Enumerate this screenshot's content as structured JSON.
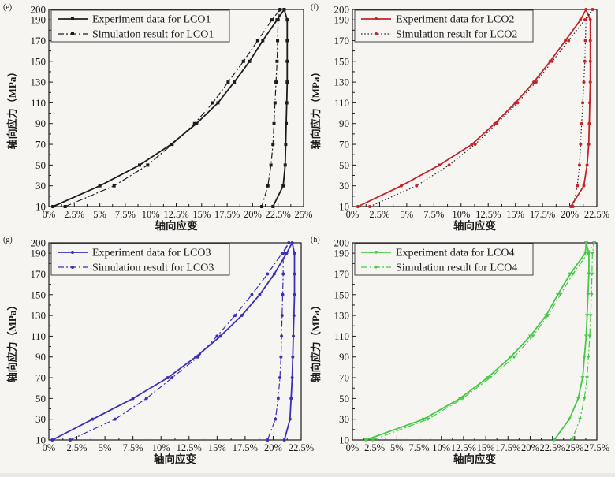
{
  "figure": {
    "background": "#f6f5f2",
    "text_color": "#1a1a1a",
    "xlabel": "轴向应变",
    "ylabel": "轴向应力（MPa）"
  },
  "chart_data": [
    {
      "type": "line",
      "panel_label": "(e)",
      "xlabel": "轴向应变",
      "ylabel": "轴向应力（MPa）",
      "xlim": [
        0,
        25
      ],
      "ylim": [
        10,
        200
      ],
      "xticks": [
        0,
        2.5,
        5,
        7.5,
        10,
        12.5,
        15,
        17.5,
        20,
        22.5,
        25
      ],
      "xtick_labels": [
        "0%",
        "2.5%",
        "5%",
        "7.5%",
        "10%",
        "12.5%",
        "15%",
        "17.5%",
        "20%",
        "22.5%",
        "25%"
      ],
      "yticks": [
        10,
        30,
        50,
        70,
        90,
        110,
        130,
        150,
        170,
        190,
        200
      ],
      "ytick_labels": [
        "10",
        "30",
        "50",
        "70",
        "90",
        "110",
        "130",
        "150",
        "170",
        "190",
        "200"
      ],
      "grid": false,
      "legend_position": "top-left",
      "series": [
        {
          "name": "Experiment data for LCO1",
          "style": "solid",
          "color": "#1c1c1c",
          "marker": "square",
          "marker_color": "#1c1c1c",
          "points": [
            [
              0.4,
              10
            ],
            [
              5.0,
              30
            ],
            [
              8.9,
              50
            ],
            [
              12.0,
              70
            ],
            [
              14.5,
              90
            ],
            [
              16.6,
              110
            ],
            [
              18.2,
              130
            ],
            [
              19.7,
              150
            ],
            [
              21.0,
              170
            ],
            [
              22.4,
              190
            ],
            [
              23.1,
              200
            ],
            [
              23.4,
              190
            ],
            [
              23.4,
              170
            ],
            [
              23.4,
              150
            ],
            [
              23.4,
              130
            ],
            [
              23.35,
              110
            ],
            [
              23.3,
              90
            ],
            [
              23.25,
              70
            ],
            [
              23.2,
              50
            ],
            [
              23.0,
              30
            ],
            [
              22.0,
              10
            ]
          ]
        },
        {
          "name": "Simulation result for LCO1",
          "style": "dashdot",
          "color": "#1c1c1c",
          "marker": "square",
          "marker_color": "#1c1c1c",
          "points": [
            [
              1.6,
              10
            ],
            [
              6.4,
              30
            ],
            [
              9.7,
              50
            ],
            [
              12.1,
              70
            ],
            [
              14.3,
              90
            ],
            [
              16.1,
              110
            ],
            [
              17.6,
              130
            ],
            [
              19.1,
              150
            ],
            [
              20.5,
              170
            ],
            [
              21.9,
              190
            ],
            [
              22.7,
              200
            ],
            [
              22.5,
              190
            ],
            [
              22.45,
              170
            ],
            [
              22.4,
              150
            ],
            [
              22.3,
              130
            ],
            [
              22.2,
              110
            ],
            [
              22.1,
              90
            ],
            [
              22.0,
              70
            ],
            [
              21.8,
              50
            ],
            [
              21.5,
              30
            ],
            [
              20.9,
              10
            ]
          ]
        }
      ]
    },
    {
      "type": "line",
      "panel_label": "(f)",
      "xlabel": "轴向应变",
      "ylabel": "轴向应力（MPa）",
      "xlim": [
        0,
        22.5
      ],
      "ylim": [
        10,
        200
      ],
      "xticks": [
        0,
        2.5,
        5,
        7.5,
        10,
        12.5,
        15,
        17.5,
        20,
        22.5
      ],
      "xtick_labels": [
        "0%",
        "2.5%",
        "5%",
        "7.5%",
        "10%",
        "12.5%",
        "15%",
        "17.5%",
        "20%",
        "22.5%"
      ],
      "yticks": [
        10,
        30,
        50,
        70,
        90,
        110,
        130,
        150,
        170,
        190,
        200
      ],
      "ytick_labels": [
        "10",
        "30",
        "50",
        "70",
        "90",
        "110",
        "130",
        "150",
        "170",
        "190",
        "200"
      ],
      "grid": false,
      "legend_position": "top-left",
      "series": [
        {
          "name": "Experiment data for LCO2",
          "style": "solid",
          "color": "#c3242a",
          "marker": "circle",
          "marker_color": "#c3242a",
          "points": [
            [
              0.5,
              10
            ],
            [
              4.5,
              30
            ],
            [
              8.0,
              50
            ],
            [
              11.0,
              70
            ],
            [
              13.1,
              90
            ],
            [
              15.0,
              110
            ],
            [
              16.7,
              130
            ],
            [
              18.2,
              150
            ],
            [
              19.6,
              170
            ],
            [
              21.0,
              190
            ],
            [
              21.5,
              200
            ],
            [
              21.9,
              190
            ],
            [
              21.9,
              170
            ],
            [
              21.9,
              150
            ],
            [
              21.9,
              130
            ],
            [
              21.85,
              110
            ],
            [
              21.8,
              90
            ],
            [
              21.75,
              70
            ],
            [
              21.6,
              50
            ],
            [
              21.3,
              30
            ],
            [
              20.1,
              10
            ]
          ]
        },
        {
          "name": "Simulation result for LCO2",
          "style": "dot",
          "color": "#2a2a2a",
          "marker": "circle",
          "marker_color": "#c3242a",
          "points": [
            [
              1.6,
              10
            ],
            [
              5.9,
              30
            ],
            [
              8.9,
              50
            ],
            [
              11.3,
              70
            ],
            [
              13.3,
              90
            ],
            [
              15.2,
              110
            ],
            [
              16.9,
              130
            ],
            [
              18.4,
              150
            ],
            [
              19.9,
              170
            ],
            [
              21.4,
              190
            ],
            [
              22.1,
              200
            ],
            [
              21.5,
              190
            ],
            [
              21.45,
              170
            ],
            [
              21.4,
              150
            ],
            [
              21.3,
              130
            ],
            [
              21.2,
              110
            ],
            [
              21.1,
              90
            ],
            [
              21.0,
              70
            ],
            [
              20.9,
              50
            ],
            [
              20.7,
              30
            ],
            [
              20.3,
              10
            ]
          ]
        }
      ]
    },
    {
      "type": "line",
      "panel_label": "(g)",
      "xlabel": "轴向应变",
      "ylabel": "轴向应力（MPa）",
      "xlim": [
        0,
        22.5
      ],
      "ylim": [
        10,
        200
      ],
      "xticks": [
        0,
        2.5,
        5,
        7.5,
        10,
        12.5,
        15,
        17.5,
        20,
        22.5
      ],
      "xtick_labels": [
        "0%",
        "2.5%",
        "5%",
        "7.5%",
        "10%",
        "12.5%",
        "15%",
        "17.5%",
        "20%",
        "22.5%"
      ],
      "yticks": [
        10,
        30,
        50,
        70,
        90,
        110,
        130,
        150,
        170,
        190,
        200
      ],
      "ytick_labels": [
        "10",
        "30",
        "50",
        "70",
        "90",
        "110",
        "130",
        "150",
        "170",
        "190",
        "200"
      ],
      "grid": false,
      "legend_position": "top-left",
      "series": [
        {
          "name": "Experiment data for LCO3",
          "style": "solid",
          "color": "#3d2fb4",
          "marker": "circle",
          "marker_color": "#3d2fb4",
          "points": [
            [
              0.3,
              10
            ],
            [
              3.9,
              30
            ],
            [
              7.5,
              50
            ],
            [
              10.6,
              70
            ],
            [
              13.1,
              90
            ],
            [
              15.3,
              110
            ],
            [
              17.2,
              130
            ],
            [
              18.8,
              150
            ],
            [
              20.1,
              170
            ],
            [
              21.2,
              190
            ],
            [
              21.7,
              200
            ],
            [
              21.9,
              190
            ],
            [
              21.9,
              170
            ],
            [
              21.9,
              150
            ],
            [
              21.85,
              130
            ],
            [
              21.8,
              110
            ],
            [
              21.75,
              90
            ],
            [
              21.7,
              70
            ],
            [
              21.6,
              50
            ],
            [
              21.5,
              30
            ],
            [
              21.0,
              10
            ]
          ]
        },
        {
          "name": "Simulation result for LCO3",
          "style": "dashdot",
          "color": "#3d2fb4",
          "marker": "circle",
          "marker_color": "#3d2fb4",
          "points": [
            [
              1.9,
              10
            ],
            [
              5.9,
              30
            ],
            [
              8.7,
              50
            ],
            [
              11.0,
              70
            ],
            [
              13.3,
              90
            ],
            [
              15.0,
              110
            ],
            [
              16.6,
              130
            ],
            [
              18.1,
              150
            ],
            [
              19.5,
              170
            ],
            [
              20.8,
              190
            ],
            [
              21.4,
              200
            ],
            [
              20.9,
              190
            ],
            [
              20.9,
              170
            ],
            [
              20.85,
              150
            ],
            [
              20.8,
              130
            ],
            [
              20.75,
              110
            ],
            [
              20.7,
              90
            ],
            [
              20.6,
              70
            ],
            [
              20.45,
              50
            ],
            [
              20.2,
              30
            ],
            [
              19.5,
              10
            ]
          ]
        }
      ]
    },
    {
      "type": "line",
      "panel_label": "(h)",
      "xlabel": "轴向应变",
      "ylabel": "轴向应力（MPa）",
      "xlim": [
        0,
        27.5
      ],
      "ylim": [
        10,
        200
      ],
      "xticks": [
        0,
        2.5,
        5,
        7.5,
        10,
        12.5,
        15,
        17.5,
        20,
        22.5,
        25,
        27.5
      ],
      "xtick_labels": [
        "0%",
        "2.5%",
        "5%",
        "7.5%",
        "10%",
        "12.5%",
        "15%",
        "17.5%",
        "20%",
        "22.5%",
        "25%",
        "27.5%"
      ],
      "yticks": [
        10,
        30,
        50,
        70,
        90,
        110,
        130,
        150,
        170,
        190,
        200
      ],
      "ytick_labels": [
        "10",
        "30",
        "50",
        "70",
        "90",
        "110",
        "130",
        "150",
        "170",
        "190",
        "200"
      ],
      "grid": false,
      "legend_position": "top-left",
      "series": [
        {
          "name": "Experiment data for LCO4",
          "style": "solid",
          "color": "#46c846",
          "marker": "triangle",
          "marker_color": "#46c846",
          "points": [
            [
              1.5,
              10
            ],
            [
              8.0,
              30
            ],
            [
              12.1,
              50
            ],
            [
              15.2,
              70
            ],
            [
              17.8,
              90
            ],
            [
              20.0,
              110
            ],
            [
              21.8,
              130
            ],
            [
              23.1,
              150
            ],
            [
              24.5,
              170
            ],
            [
              26.2,
              190
            ],
            [
              26.3,
              200
            ],
            [
              26.6,
              190
            ],
            [
              26.6,
              170
            ],
            [
              26.5,
              150
            ],
            [
              26.4,
              130
            ],
            [
              26.3,
              110
            ],
            [
              26.1,
              90
            ],
            [
              25.9,
              70
            ],
            [
              25.4,
              50
            ],
            [
              24.4,
              30
            ],
            [
              22.7,
              10
            ]
          ]
        },
        {
          "name": "Simulation result for LCO4",
          "style": "dashdot",
          "color": "#46c846",
          "marker": "triangle",
          "marker_color": "#46c846",
          "points": [
            [
              2.3,
              10
            ],
            [
              8.5,
              30
            ],
            [
              12.4,
              50
            ],
            [
              15.5,
              70
            ],
            [
              18.2,
              90
            ],
            [
              20.3,
              110
            ],
            [
              22.0,
              130
            ],
            [
              23.4,
              150
            ],
            [
              24.8,
              170
            ],
            [
              26.5,
              190
            ],
            [
              27.2,
              200
            ],
            [
              27.0,
              190
            ],
            [
              26.95,
              170
            ],
            [
              26.9,
              150
            ],
            [
              26.8,
              130
            ],
            [
              26.7,
              110
            ],
            [
              26.55,
              90
            ],
            [
              26.4,
              70
            ],
            [
              26.1,
              50
            ],
            [
              25.6,
              30
            ],
            [
              24.7,
              10
            ]
          ]
        }
      ]
    }
  ]
}
